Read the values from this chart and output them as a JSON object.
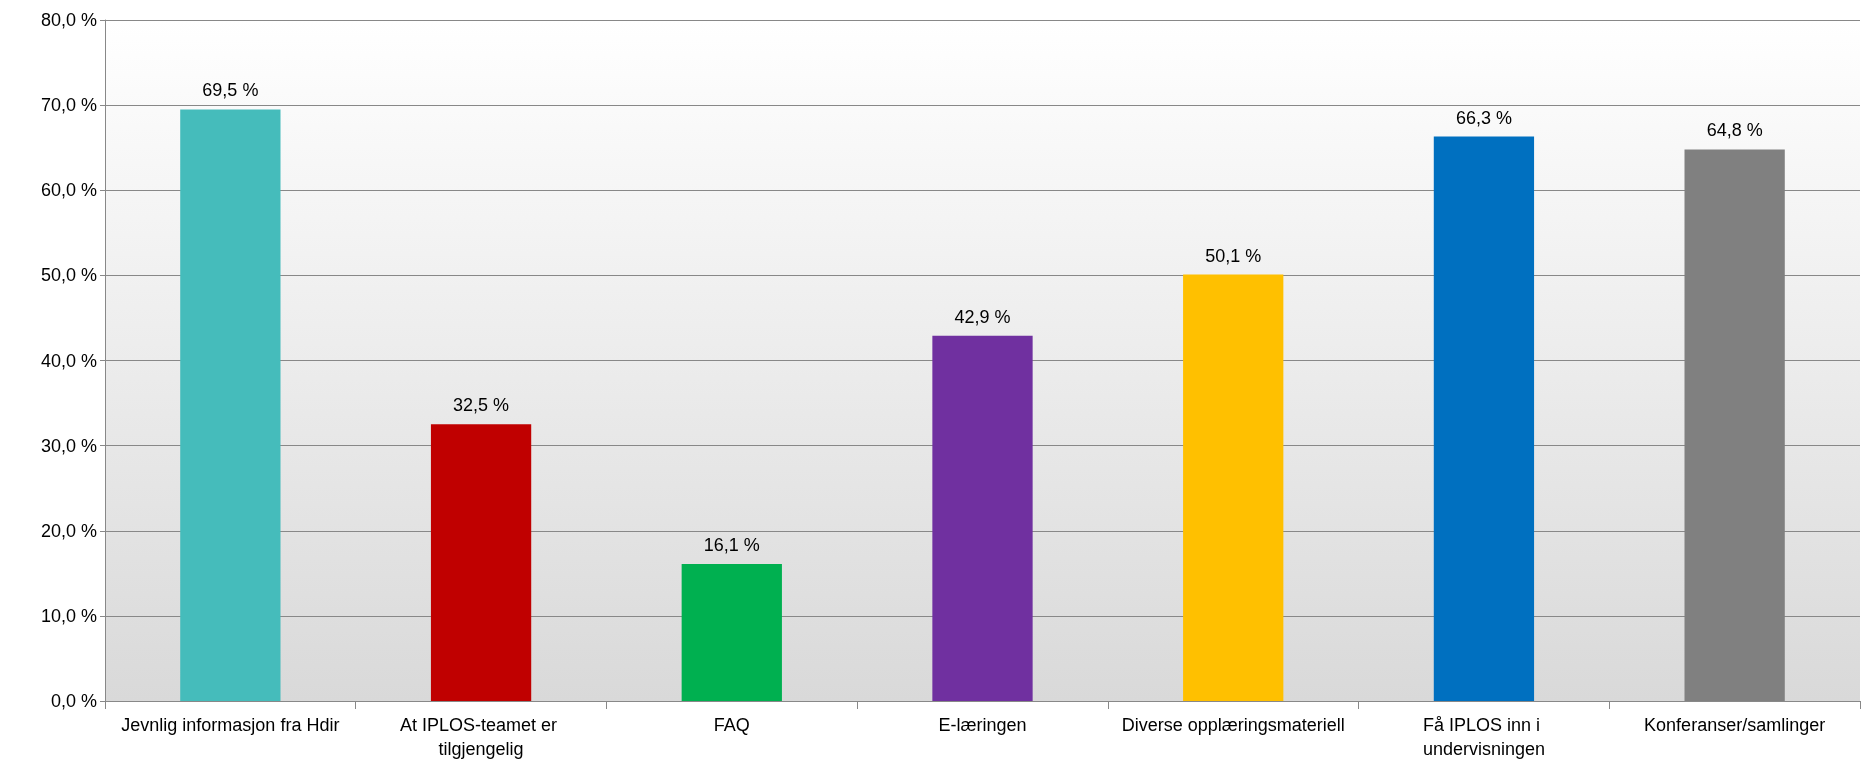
{
  "chart_data": {
    "type": "bar",
    "categories": [
      "Jevnlig informasjon fra Hdir",
      "At IPLOS-teamet er tilgjengelig",
      "FAQ",
      "E-læringen",
      "Diverse opplæringsmateriell",
      "Få IPLOS inn i undervisningen",
      "Konferanser/samlinger"
    ],
    "values": [
      69.5,
      32.5,
      16.1,
      42.9,
      50.1,
      66.3,
      64.8
    ],
    "colors": [
      "#45bcbb",
      "#c00000",
      "#00b050",
      "#7030a0",
      "#ffc000",
      "#0070c0",
      "#808080"
    ],
    "value_labels": [
      "69,5 %",
      "32,5 %",
      "16,1 %",
      "42,9 %",
      "50,1 %",
      "66,3 %",
      "64,8 %"
    ],
    "ylim": [
      0,
      80
    ],
    "yticks": [
      {
        "value": 0,
        "label": "0,0 %"
      },
      {
        "value": 10,
        "label": "10,0 %"
      },
      {
        "value": 20,
        "label": "20,0 %"
      },
      {
        "value": 30,
        "label": "30,0 %"
      },
      {
        "value": 40,
        "label": "40,0 %"
      },
      {
        "value": 50,
        "label": "50,0 %"
      },
      {
        "value": 60,
        "label": "60,0 %"
      },
      {
        "value": 70,
        "label": "70,0 %"
      },
      {
        "value": 80,
        "label": "80,0 %"
      }
    ],
    "grid": "y"
  }
}
